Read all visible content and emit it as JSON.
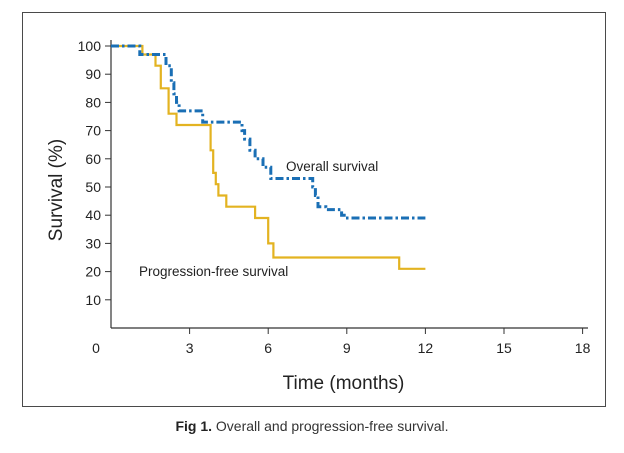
{
  "caption": {
    "label": "Fig 1.",
    "text": "Overall and progression-free survival."
  },
  "chart_data": {
    "type": "line",
    "xlabel": "Time (months)",
    "ylabel": "Survival (%)",
    "xlim": [
      0,
      18
    ],
    "ylim": [
      0,
      100
    ],
    "xticks": [
      0,
      3,
      6,
      9,
      12,
      15,
      18
    ],
    "yticks": [
      10,
      20,
      30,
      40,
      50,
      60,
      70,
      80,
      90,
      100
    ],
    "grid": false,
    "series": [
      {
        "name": "Overall survival",
        "color": "#1a6fb5",
        "style": "dash-dot",
        "steps": [
          [
            0,
            100
          ],
          [
            0.9,
            100
          ],
          [
            1.1,
            97
          ],
          [
            1.9,
            97
          ],
          [
            2.1,
            93
          ],
          [
            2.3,
            87
          ],
          [
            2.4,
            83
          ],
          [
            2.5,
            80
          ],
          [
            2.6,
            77
          ],
          [
            3.3,
            77
          ],
          [
            3.5,
            73
          ],
          [
            4.8,
            73
          ],
          [
            5.0,
            70
          ],
          [
            5.1,
            67
          ],
          [
            5.3,
            63
          ],
          [
            5.5,
            60
          ],
          [
            5.8,
            57
          ],
          [
            6.1,
            53
          ],
          [
            6.3,
            53
          ],
          [
            6.4,
            53
          ],
          [
            7.6,
            53
          ],
          [
            7.7,
            50
          ],
          [
            7.8,
            47
          ],
          [
            7.9,
            43
          ],
          [
            8.2,
            42
          ],
          [
            8.8,
            40
          ],
          [
            8.9,
            39
          ],
          [
            12.0,
            39
          ]
        ]
      },
      {
        "name": "Progression-free survival",
        "color": "#e3b321",
        "style": "solid",
        "steps": [
          [
            0,
            100
          ],
          [
            1.1,
            100
          ],
          [
            1.2,
            97
          ],
          [
            1.6,
            97
          ],
          [
            1.7,
            93
          ],
          [
            1.9,
            85
          ],
          [
            2.2,
            76
          ],
          [
            2.5,
            72
          ],
          [
            3.7,
            72
          ],
          [
            3.8,
            63
          ],
          [
            3.9,
            55
          ],
          [
            4.0,
            51
          ],
          [
            4.1,
            47
          ],
          [
            4.4,
            43
          ],
          [
            5.4,
            43
          ],
          [
            5.5,
            39
          ],
          [
            5.9,
            39
          ],
          [
            6.0,
            30
          ],
          [
            6.2,
            25
          ],
          [
            10.9,
            25
          ],
          [
            11.0,
            21
          ],
          [
            12.0,
            21
          ]
        ]
      }
    ]
  }
}
